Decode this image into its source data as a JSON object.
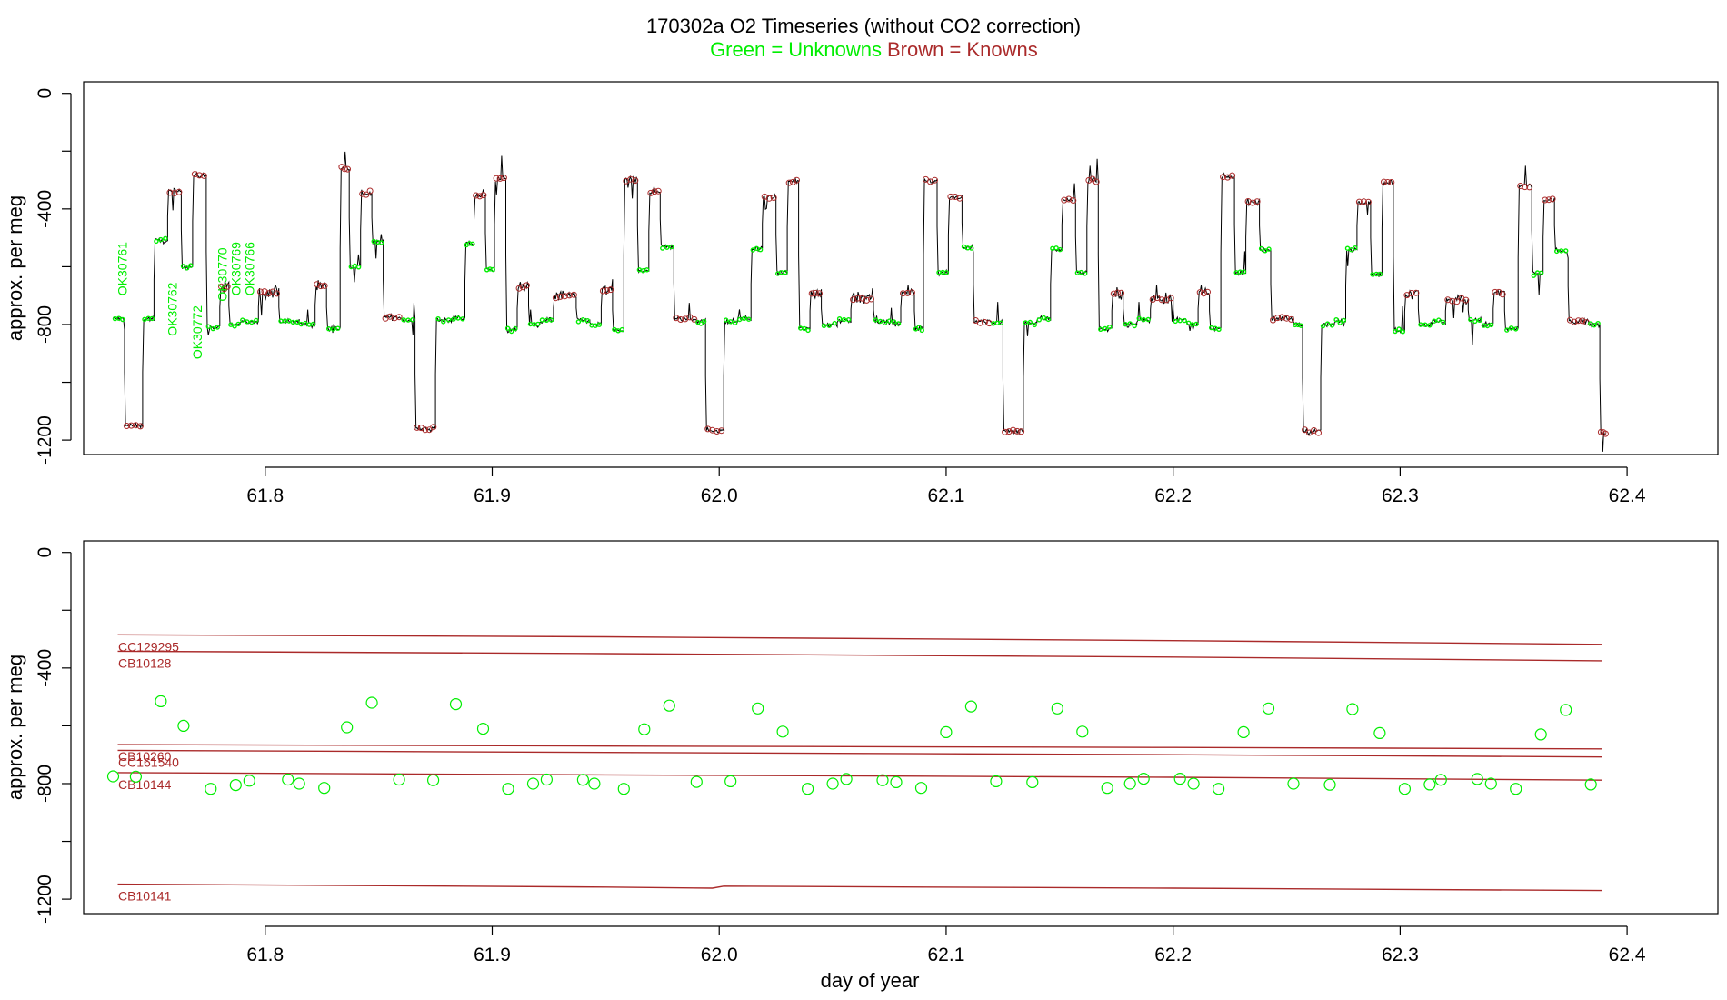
{
  "title": {
    "main": "170302a    O2 Timeseries (without CO2 correction)",
    "green_label": "Green = Unknowns",
    "brown_label": "Brown = Knowns"
  },
  "colors": {
    "unknown": "#00ee00",
    "known": "#aa2a2a",
    "trace": "#000000",
    "axis": "#000000"
  },
  "chart_data": [
    {
      "type": "line",
      "panel": "top",
      "ylabel": "approx. per meg",
      "xlim": [
        61.72,
        62.44
      ],
      "ylim": [
        -1250,
        40
      ],
      "x_ticks": [
        61.8,
        61.9,
        62.0,
        62.1,
        62.2,
        62.3,
        62.4
      ],
      "x_tick_labels": [
        "61.8",
        "61.9",
        "62.0",
        "62.1",
        "62.2",
        "62.3",
        "62.4"
      ],
      "y_ticks": [
        0,
        -400,
        -800,
        -1200
      ],
      "y_tick_labels": [
        "0",
        "-400",
        "-800",
        "-1200"
      ],
      "segments": [
        {
          "start": 61.733,
          "end": 61.738,
          "value": -780,
          "kind": "unknown"
        },
        {
          "start": 61.738,
          "end": 61.746,
          "value": -1150,
          "kind": "known"
        },
        {
          "start": 61.746,
          "end": 61.751,
          "value": -780,
          "kind": "unknown"
        },
        {
          "start": 61.751,
          "end": 61.757,
          "value": -510,
          "kind": "unknown"
        },
        {
          "start": 61.757,
          "end": 61.763,
          "value": -340,
          "kind": "known"
        },
        {
          "start": 61.763,
          "end": 61.768,
          "value": -600,
          "kind": "unknown"
        },
        {
          "start": 61.768,
          "end": 61.774,
          "value": -285,
          "kind": "known"
        },
        {
          "start": 61.774,
          "end": 61.78,
          "value": -810,
          "kind": "unknown"
        },
        {
          "start": 61.78,
          "end": 61.784,
          "value": -670,
          "kind": "known"
        },
        {
          "start": 61.784,
          "end": 61.789,
          "value": -800,
          "kind": "unknown"
        },
        {
          "start": 61.789,
          "end": 61.797,
          "value": -790,
          "kind": "unknown"
        },
        {
          "start": 61.797,
          "end": 61.806,
          "value": -690,
          "kind": "known"
        },
        {
          "start": 61.806,
          "end": 61.815,
          "value": -790,
          "kind": "unknown"
        },
        {
          "start": 61.815,
          "end": 61.822,
          "value": -800,
          "kind": "unknown"
        },
        {
          "start": 61.822,
          "end": 61.827,
          "value": -665,
          "kind": "known"
        },
        {
          "start": 61.827,
          "end": 61.833,
          "value": -815,
          "kind": "unknown"
        },
        {
          "start": 61.833,
          "end": 61.837,
          "value": -260,
          "kind": "known"
        },
        {
          "start": 61.837,
          "end": 61.842,
          "value": -600,
          "kind": "unknown"
        },
        {
          "start": 61.842,
          "end": 61.847,
          "value": -345,
          "kind": "known"
        },
        {
          "start": 61.847,
          "end": 61.852,
          "value": -515,
          "kind": "unknown"
        },
        {
          "start": 61.852,
          "end": 61.86,
          "value": -775,
          "kind": "known"
        },
        {
          "start": 61.86,
          "end": 61.866,
          "value": -785,
          "kind": "unknown"
        },
        {
          "start": 61.866,
          "end": 61.875,
          "value": -1160,
          "kind": "known"
        },
        {
          "start": 61.875,
          "end": 61.882,
          "value": -785,
          "kind": "unknown"
        },
        {
          "start": 61.882,
          "end": 61.888,
          "value": -780,
          "kind": "unknown"
        },
        {
          "start": 61.888,
          "end": 61.892,
          "value": -520,
          "kind": "unknown"
        },
        {
          "start": 61.892,
          "end": 61.897,
          "value": -355,
          "kind": "known"
        },
        {
          "start": 61.897,
          "end": 61.901,
          "value": -610,
          "kind": "unknown"
        },
        {
          "start": 61.901,
          "end": 61.906,
          "value": -295,
          "kind": "known"
        },
        {
          "start": 61.906,
          "end": 61.911,
          "value": -820,
          "kind": "unknown"
        },
        {
          "start": 61.911,
          "end": 61.916,
          "value": -670,
          "kind": "known"
        },
        {
          "start": 61.916,
          "end": 61.921,
          "value": -800,
          "kind": "unknown"
        },
        {
          "start": 61.921,
          "end": 61.927,
          "value": -785,
          "kind": "unknown"
        },
        {
          "start": 61.927,
          "end": 61.937,
          "value": -700,
          "kind": "known"
        },
        {
          "start": 61.937,
          "end": 61.943,
          "value": -785,
          "kind": "unknown"
        },
        {
          "start": 61.943,
          "end": 61.948,
          "value": -800,
          "kind": "unknown"
        },
        {
          "start": 61.948,
          "end": 61.953,
          "value": -680,
          "kind": "known"
        },
        {
          "start": 61.953,
          "end": 61.958,
          "value": -820,
          "kind": "unknown"
        },
        {
          "start": 61.958,
          "end": 61.964,
          "value": -300,
          "kind": "known"
        },
        {
          "start": 61.964,
          "end": 61.969,
          "value": -615,
          "kind": "unknown"
        },
        {
          "start": 61.969,
          "end": 61.974,
          "value": -340,
          "kind": "known"
        },
        {
          "start": 61.974,
          "end": 61.98,
          "value": -530,
          "kind": "unknown"
        },
        {
          "start": 61.98,
          "end": 61.99,
          "value": -780,
          "kind": "known"
        },
        {
          "start": 61.99,
          "end": 61.994,
          "value": -790,
          "kind": "unknown"
        },
        {
          "start": 61.994,
          "end": 62.002,
          "value": -1165,
          "kind": "known"
        },
        {
          "start": 62.002,
          "end": 62.008,
          "value": -790,
          "kind": "unknown"
        },
        {
          "start": 62.008,
          "end": 62.014,
          "value": -780,
          "kind": "unknown"
        },
        {
          "start": 62.014,
          "end": 62.019,
          "value": -540,
          "kind": "unknown"
        },
        {
          "start": 62.019,
          "end": 62.025,
          "value": -360,
          "kind": "known"
        },
        {
          "start": 62.025,
          "end": 62.03,
          "value": -620,
          "kind": "unknown"
        },
        {
          "start": 62.03,
          "end": 62.035,
          "value": -305,
          "kind": "known"
        },
        {
          "start": 62.035,
          "end": 62.04,
          "value": -815,
          "kind": "unknown"
        },
        {
          "start": 62.04,
          "end": 62.045,
          "value": -690,
          "kind": "known"
        },
        {
          "start": 62.045,
          "end": 62.052,
          "value": -800,
          "kind": "unknown"
        },
        {
          "start": 62.052,
          "end": 62.058,
          "value": -785,
          "kind": "unknown"
        },
        {
          "start": 62.058,
          "end": 62.068,
          "value": -710,
          "kind": "known"
        },
        {
          "start": 62.068,
          "end": 62.074,
          "value": -790,
          "kind": "unknown"
        },
        {
          "start": 62.074,
          "end": 62.08,
          "value": -795,
          "kind": "unknown"
        },
        {
          "start": 62.08,
          "end": 62.086,
          "value": -690,
          "kind": "known"
        },
        {
          "start": 62.086,
          "end": 62.09,
          "value": -815,
          "kind": "unknown"
        },
        {
          "start": 62.09,
          "end": 62.096,
          "value": -300,
          "kind": "known"
        },
        {
          "start": 62.096,
          "end": 62.101,
          "value": -620,
          "kind": "unknown"
        },
        {
          "start": 62.101,
          "end": 62.107,
          "value": -360,
          "kind": "known"
        },
        {
          "start": 62.107,
          "end": 62.112,
          "value": -535,
          "kind": "unknown"
        },
        {
          "start": 62.112,
          "end": 62.12,
          "value": -790,
          "kind": "known"
        },
        {
          "start": 62.12,
          "end": 62.125,
          "value": -795,
          "kind": "unknown"
        },
        {
          "start": 62.125,
          "end": 62.134,
          "value": -1170,
          "kind": "known"
        },
        {
          "start": 62.134,
          "end": 62.14,
          "value": -795,
          "kind": "unknown"
        },
        {
          "start": 62.14,
          "end": 62.146,
          "value": -780,
          "kind": "unknown"
        },
        {
          "start": 62.146,
          "end": 62.151,
          "value": -540,
          "kind": "unknown"
        },
        {
          "start": 62.151,
          "end": 62.157,
          "value": -370,
          "kind": "known"
        },
        {
          "start": 62.157,
          "end": 62.162,
          "value": -620,
          "kind": "unknown"
        },
        {
          "start": 62.162,
          "end": 62.167,
          "value": -300,
          "kind": "known"
        },
        {
          "start": 62.167,
          "end": 62.173,
          "value": -815,
          "kind": "unknown"
        },
        {
          "start": 62.173,
          "end": 62.178,
          "value": -690,
          "kind": "known"
        },
        {
          "start": 62.178,
          "end": 62.184,
          "value": -800,
          "kind": "unknown"
        },
        {
          "start": 62.184,
          "end": 62.19,
          "value": -785,
          "kind": "unknown"
        },
        {
          "start": 62.19,
          "end": 62.2,
          "value": -710,
          "kind": "known"
        },
        {
          "start": 62.2,
          "end": 62.206,
          "value": -785,
          "kind": "unknown"
        },
        {
          "start": 62.206,
          "end": 62.211,
          "value": -800,
          "kind": "unknown"
        },
        {
          "start": 62.211,
          "end": 62.216,
          "value": -690,
          "kind": "known"
        },
        {
          "start": 62.216,
          "end": 62.221,
          "value": -815,
          "kind": "unknown"
        },
        {
          "start": 62.221,
          "end": 62.227,
          "value": -290,
          "kind": "known"
        },
        {
          "start": 62.227,
          "end": 62.232,
          "value": -620,
          "kind": "unknown"
        },
        {
          "start": 62.232,
          "end": 62.238,
          "value": -375,
          "kind": "known"
        },
        {
          "start": 62.238,
          "end": 62.243,
          "value": -540,
          "kind": "unknown"
        },
        {
          "start": 62.243,
          "end": 62.253,
          "value": -780,
          "kind": "known"
        },
        {
          "start": 62.253,
          "end": 62.257,
          "value": -800,
          "kind": "unknown"
        },
        {
          "start": 62.257,
          "end": 62.265,
          "value": -1170,
          "kind": "known"
        },
        {
          "start": 62.265,
          "end": 62.271,
          "value": -800,
          "kind": "unknown"
        },
        {
          "start": 62.271,
          "end": 62.276,
          "value": -790,
          "kind": "unknown"
        },
        {
          "start": 62.276,
          "end": 62.281,
          "value": -540,
          "kind": "unknown"
        },
        {
          "start": 62.281,
          "end": 62.287,
          "value": -375,
          "kind": "known"
        },
        {
          "start": 62.287,
          "end": 62.292,
          "value": -625,
          "kind": "unknown"
        },
        {
          "start": 62.292,
          "end": 62.297,
          "value": -310,
          "kind": "known"
        },
        {
          "start": 62.297,
          "end": 62.302,
          "value": -820,
          "kind": "unknown"
        },
        {
          "start": 62.302,
          "end": 62.308,
          "value": -690,
          "kind": "known"
        },
        {
          "start": 62.308,
          "end": 62.314,
          "value": -800,
          "kind": "unknown"
        },
        {
          "start": 62.314,
          "end": 62.32,
          "value": -790,
          "kind": "unknown"
        },
        {
          "start": 62.32,
          "end": 62.33,
          "value": -715,
          "kind": "known"
        },
        {
          "start": 62.33,
          "end": 62.336,
          "value": -785,
          "kind": "unknown"
        },
        {
          "start": 62.336,
          "end": 62.341,
          "value": -800,
          "kind": "unknown"
        },
        {
          "start": 62.341,
          "end": 62.346,
          "value": -690,
          "kind": "known"
        },
        {
          "start": 62.346,
          "end": 62.352,
          "value": -815,
          "kind": "unknown"
        },
        {
          "start": 62.352,
          "end": 62.358,
          "value": -320,
          "kind": "known"
        },
        {
          "start": 62.358,
          "end": 62.363,
          "value": -625,
          "kind": "unknown"
        },
        {
          "start": 62.363,
          "end": 62.368,
          "value": -370,
          "kind": "known"
        },
        {
          "start": 62.368,
          "end": 62.374,
          "value": -545,
          "kind": "unknown"
        },
        {
          "start": 62.374,
          "end": 62.383,
          "value": -790,
          "kind": "known"
        },
        {
          "start": 62.383,
          "end": 62.388,
          "value": -800,
          "kind": "unknown"
        },
        {
          "start": 62.388,
          "end": 62.391,
          "value": -1175,
          "kind": "known"
        }
      ],
      "annotations": [
        {
          "text": "OK30761",
          "x": 61.739,
          "y": -700
        },
        {
          "text": "OK30762",
          "x": 61.761,
          "y": -840
        },
        {
          "text": "OK30772",
          "x": 61.772,
          "y": -920
        },
        {
          "text": "OK30770",
          "x": 61.783,
          "y": -720
        },
        {
          "text": "OK30769",
          "x": 61.789,
          "y": -700
        },
        {
          "text": "OK30766",
          "x": 61.795,
          "y": -700
        }
      ]
    },
    {
      "type": "scatter",
      "panel": "bottom",
      "xlabel": "day of year",
      "ylabel": "approx. per meg",
      "xlim": [
        61.72,
        62.44
      ],
      "ylim": [
        -1250,
        40
      ],
      "x_ticks": [
        61.8,
        61.9,
        62.0,
        62.1,
        62.2,
        62.3,
        62.4
      ],
      "x_tick_labels": [
        "61.8",
        "61.9",
        "62.0",
        "62.1",
        "62.2",
        "62.3",
        "62.4"
      ],
      "y_ticks": [
        0,
        -400,
        -800,
        -1200
      ],
      "y_tick_labels": [
        "0",
        "-400",
        "-800",
        "-1200"
      ],
      "known_lines": [
        {
          "name": "CC129295",
          "x": [
            61.735,
            61.95,
            62.2,
            62.389
          ],
          "y": [
            -285,
            -292,
            -305,
            -318
          ]
        },
        {
          "name": "CB10128",
          "x": [
            61.735,
            61.95,
            62.2,
            62.389
          ],
          "y": [
            -342,
            -350,
            -362,
            -375
          ]
        },
        {
          "name": "CB10260",
          "x": [
            61.735,
            61.95,
            62.2,
            62.389
          ],
          "y": [
            -665,
            -670,
            -675,
            -680
          ]
        },
        {
          "name": "CC161540",
          "x": [
            61.735,
            61.95,
            62.2,
            62.389
          ],
          "y": [
            -685,
            -692,
            -700,
            -708
          ]
        },
        {
          "name": "CB10144",
          "x": [
            61.735,
            61.95,
            62.2,
            62.389
          ],
          "y": [
            -762,
            -770,
            -778,
            -788
          ]
        },
        {
          "name": "CB10141",
          "x": [
            61.735,
            61.95,
            61.997,
            62.002,
            62.2,
            62.389
          ],
          "y": [
            -1148,
            -1158,
            -1162,
            -1155,
            -1162,
            -1170
          ]
        }
      ],
      "points_x": [
        61.733,
        61.743,
        61.754,
        61.764,
        61.776,
        61.787,
        61.793,
        61.81,
        61.815,
        61.826,
        61.836,
        61.847,
        61.859,
        61.874,
        61.884,
        61.896,
        61.907,
        61.918,
        61.924,
        61.94,
        61.945,
        61.958,
        61.967,
        61.978,
        61.99,
        62.005,
        62.017,
        62.028,
        62.039,
        62.05,
        62.056,
        62.072,
        62.078,
        62.089,
        62.1,
        62.111,
        62.122,
        62.138,
        62.149,
        62.16,
        62.171,
        62.181,
        62.187,
        62.203,
        62.209,
        62.22,
        62.231,
        62.242,
        62.253,
        62.269,
        62.279,
        62.291,
        62.302,
        62.313,
        62.318,
        62.334,
        62.34,
        62.351,
        62.362,
        62.373,
        62.384
      ],
      "points_y": [
        -775,
        -776,
        -515,
        -600,
        -818,
        -805,
        -790,
        -786,
        -800,
        -815,
        -605,
        -520,
        -786,
        -788,
        -525,
        -610,
        -818,
        -800,
        -786,
        -787,
        -800,
        -818,
        -612,
        -530,
        -794,
        -792,
        -540,
        -620,
        -818,
        -800,
        -784,
        -788,
        -795,
        -815,
        -622,
        -533,
        -792,
        -795,
        -540,
        -620,
        -815,
        -800,
        -783,
        -783,
        -800,
        -818,
        -622,
        -540,
        -800,
        -804,
        -542,
        -625,
        -818,
        -803,
        -787,
        -784,
        -800,
        -818,
        -630,
        -545,
        -803
      ]
    }
  ],
  "bottom_line_labels": [
    "CC129295",
    "CB10128",
    "CB10260",
    "CC161540",
    "CB10144",
    "CB10141"
  ]
}
